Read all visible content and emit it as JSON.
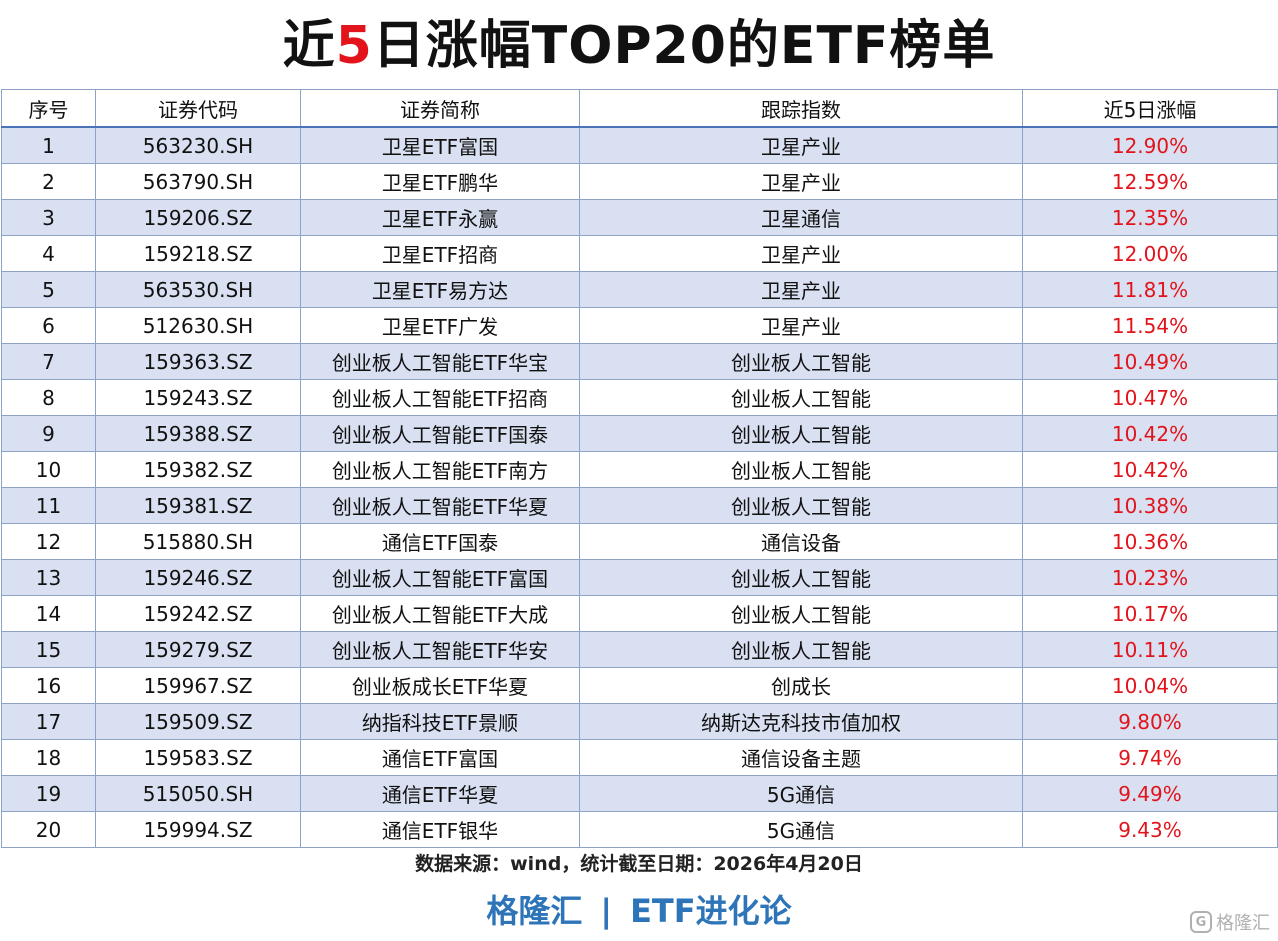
{
  "title": {
    "prefix": "近",
    "highlight": "5",
    "suffix": "日涨幅TOP20的ETF榜单"
  },
  "colors": {
    "highlight": "#e3131b",
    "brand": "#2d74b8",
    "row_alt": "#d8e0f1",
    "border": "#8da2c6"
  },
  "table": {
    "headers": [
      "序号",
      "证券代码",
      "证券简称",
      "跟踪指数",
      "近5日涨幅"
    ],
    "rows": [
      [
        "1",
        "563230.SH",
        "卫星ETF富国",
        "卫星产业",
        "12.90%"
      ],
      [
        "2",
        "563790.SH",
        "卫星ETF鹏华",
        "卫星产业",
        "12.59%"
      ],
      [
        "3",
        "159206.SZ",
        "卫星ETF永赢",
        "卫星通信",
        "12.35%"
      ],
      [
        "4",
        "159218.SZ",
        "卫星ETF招商",
        "卫星产业",
        "12.00%"
      ],
      [
        "5",
        "563530.SH",
        "卫星ETF易方达",
        "卫星产业",
        "11.81%"
      ],
      [
        "6",
        "512630.SH",
        "卫星ETF广发",
        "卫星产业",
        "11.54%"
      ],
      [
        "7",
        "159363.SZ",
        "创业板人工智能ETF华宝",
        "创业板人工智能",
        "10.49%"
      ],
      [
        "8",
        "159243.SZ",
        "创业板人工智能ETF招商",
        "创业板人工智能",
        "10.47%"
      ],
      [
        "9",
        "159388.SZ",
        "创业板人工智能ETF国泰",
        "创业板人工智能",
        "10.42%"
      ],
      [
        "10",
        "159382.SZ",
        "创业板人工智能ETF南方",
        "创业板人工智能",
        "10.42%"
      ],
      [
        "11",
        "159381.SZ",
        "创业板人工智能ETF华夏",
        "创业板人工智能",
        "10.38%"
      ],
      [
        "12",
        "515880.SH",
        "通信ETF国泰",
        "通信设备",
        "10.36%"
      ],
      [
        "13",
        "159246.SZ",
        "创业板人工智能ETF富国",
        "创业板人工智能",
        "10.23%"
      ],
      [
        "14",
        "159242.SZ",
        "创业板人工智能ETF大成",
        "创业板人工智能",
        "10.17%"
      ],
      [
        "15",
        "159279.SZ",
        "创业板人工智能ETF华安",
        "创业板人工智能",
        "10.11%"
      ],
      [
        "16",
        "159967.SZ",
        "创业板成长ETF华夏",
        "创成长",
        "10.04%"
      ],
      [
        "17",
        "159509.SZ",
        "纳指科技ETF景顺",
        "纳斯达克科技市值加权",
        "9.80%"
      ],
      [
        "18",
        "159583.SZ",
        "通信ETF富国",
        "通信设备主题",
        "9.74%"
      ],
      [
        "19",
        "515050.SH",
        "通信ETF华夏",
        "5G通信",
        "9.49%"
      ],
      [
        "20",
        "159994.SZ",
        "通信ETF银华",
        "5G通信",
        "9.43%"
      ]
    ]
  },
  "source": "数据来源：wind，统计截至日期：2026年4月20日",
  "brand": {
    "left": "格隆汇",
    "separator": "|",
    "right": "ETF进化论"
  },
  "watermark": {
    "icon": "G",
    "text": "格隆汇"
  }
}
